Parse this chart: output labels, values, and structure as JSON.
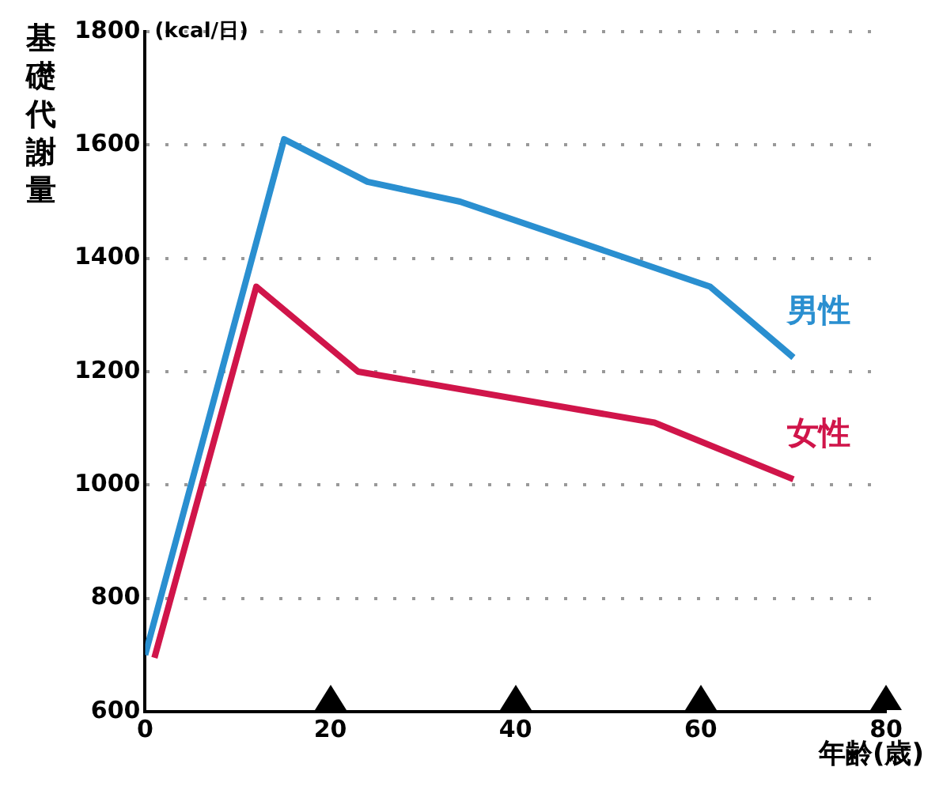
{
  "chart_data": {
    "type": "line",
    "ylabel": "基礎代謝量",
    "xlabel": "年齢(歳)",
    "annotations": [
      "(kcal/日)"
    ],
    "xlim": [
      0,
      80
    ],
    "xticks": [
      0,
      20,
      40,
      60,
      80
    ],
    "ylim": [
      600,
      1800
    ],
    "yticks": [
      600,
      800,
      1000,
      1200,
      1400,
      1600,
      1800
    ],
    "grid": "y",
    "legend": false,
    "marker": "none",
    "line_style": "solid",
    "series": [
      {
        "name": "男性",
        "color": "#2a8fd0",
        "x": [
          0,
          15,
          24,
          34,
          61,
          70
        ],
        "values": [
          700,
          1610,
          1535,
          1500,
          1350,
          1225
        ]
      },
      {
        "name": "女性",
        "color": "#d0154a",
        "x": [
          1,
          12,
          23,
          55,
          70
        ],
        "values": [
          695,
          1350,
          1200,
          1110,
          1010
        ]
      }
    ]
  }
}
